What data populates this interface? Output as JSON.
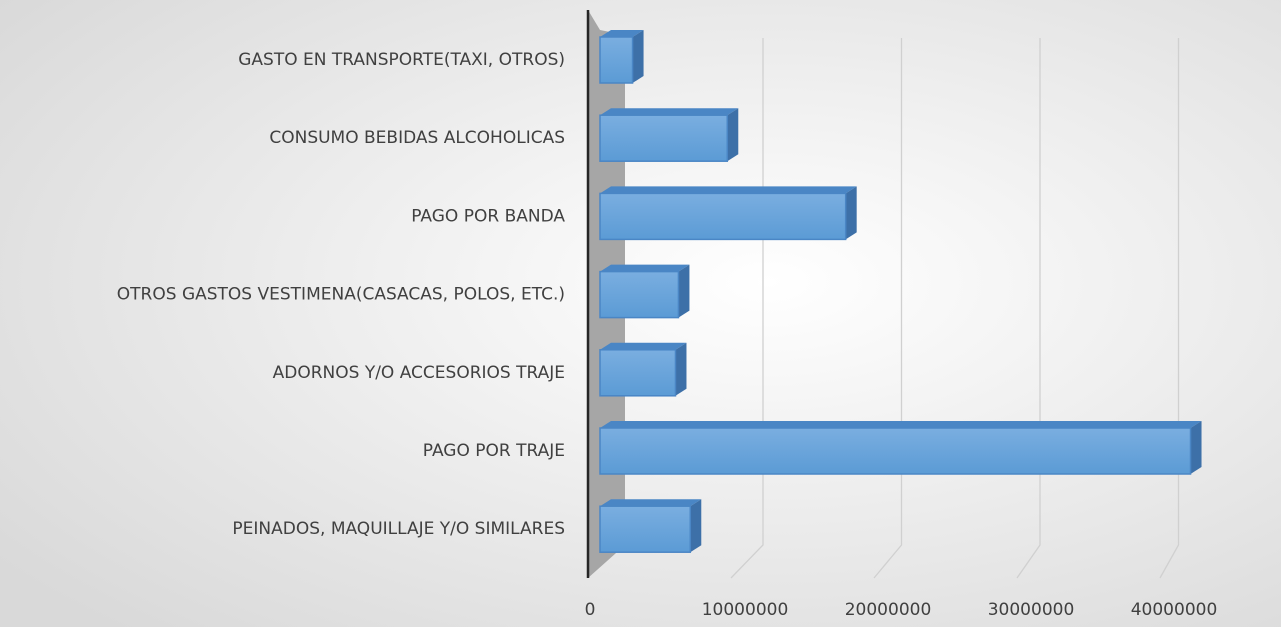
{
  "chart_data": {
    "type": "bar3d_horizontal",
    "categories": [
      "GASTO EN TRANSPORTE(TAXI, OTROS)",
      "CONSUMO BEBIDAS ALCOHOLICAS",
      "PAGO POR BANDA",
      "OTROS GASTOS VESTIMENA(CASACAS, POLOS, ETC.)",
      "ADORNOS Y/O ACCESORIOS TRAJE",
      "PAGO POR TRAJE",
      "PEINADOS, MAQUILLAJE Y/O SIMILARES"
    ],
    "values": [
      2200000,
      8600000,
      16600000,
      5300000,
      5100000,
      39900000,
      6100000
    ],
    "color": "#5b9bd5",
    "xlim": [
      0,
      40000000
    ],
    "xticks": [
      0,
      10000000,
      20000000,
      30000000,
      40000000
    ],
    "grid": true
  }
}
